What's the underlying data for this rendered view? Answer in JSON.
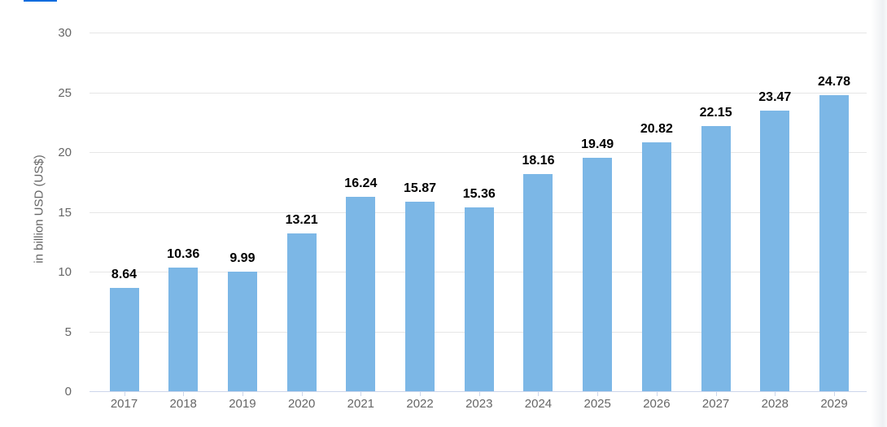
{
  "page": {
    "accent_color": "#0a6cde"
  },
  "chart_data": {
    "type": "bar",
    "title": "",
    "xlabel": "",
    "ylabel": "in billion USD (US$)",
    "categories": [
      "2017",
      "2018",
      "2019",
      "2020",
      "2021",
      "2022",
      "2023",
      "2024",
      "2025",
      "2026",
      "2027",
      "2028",
      "2029"
    ],
    "values": [
      8.64,
      10.36,
      9.99,
      13.21,
      16.24,
      15.87,
      15.36,
      18.16,
      19.49,
      20.82,
      22.15,
      23.47,
      24.78
    ],
    "value_labels": [
      "8.64",
      "10.36",
      "9.99",
      "13.21",
      "16.24",
      "15.87",
      "15.36",
      "18.16",
      "19.49",
      "20.82",
      "22.15",
      "23.47",
      "24.78"
    ],
    "ylim": [
      0,
      30
    ],
    "yticks": [
      0,
      5,
      10,
      15,
      20,
      25,
      30
    ],
    "grid": true,
    "legend_position": "none",
    "bar_color": "#7cb7e6",
    "gridline_color": "#e6e6e6",
    "axis_line_color": "#ccd6eb",
    "axis_text_color": "#666666",
    "value_label_color": "#000000"
  }
}
